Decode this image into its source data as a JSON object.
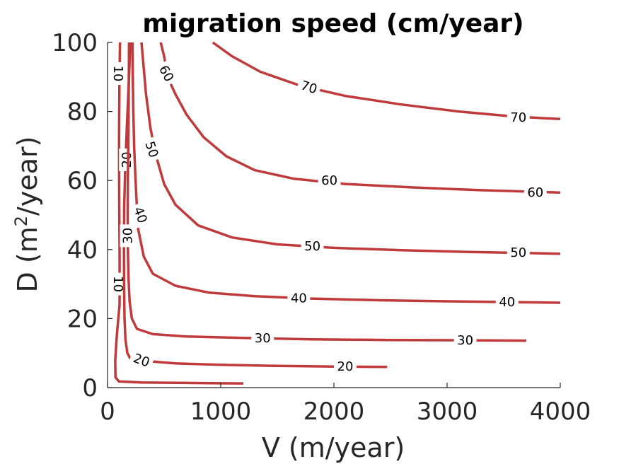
{
  "chart_data": {
    "type": "contour",
    "title": "migration speed (cm/year)",
    "xlabel": "V (m/year)",
    "ylabel_main": "D (m",
    "ylabel_sup": "2",
    "ylabel_tail": "/year)",
    "xlim": [
      0,
      4000
    ],
    "ylim": [
      0,
      100
    ],
    "xticks": [
      0,
      1000,
      2000,
      3000,
      4000
    ],
    "xtick_labels": [
      "0",
      "1000",
      "2000",
      "3000",
      "4000"
    ],
    "yticks": [
      0,
      20,
      40,
      60,
      80,
      100
    ],
    "ytick_labels": [
      "0",
      "20",
      "40",
      "60",
      "80",
      "100"
    ],
    "line_color": "#c0393b",
    "contours": [
      {
        "level": 10,
        "points": [
          [
            110,
            100
          ],
          [
            105,
            88
          ],
          [
            102,
            72
          ],
          [
            103,
            55
          ],
          [
            106,
            40
          ],
          [
            107,
            30
          ],
          [
            106,
            24
          ],
          [
            82,
            15
          ],
          [
            68,
            8
          ],
          [
            70,
            3
          ],
          [
            100,
            1.8
          ],
          [
            300,
            1.5
          ],
          [
            600,
            1.4
          ],
          [
            900,
            1.3
          ],
          [
            1200,
            1.2
          ]
        ],
        "labels": [
          {
            "text": "10",
            "at": [
              95,
              91
            ],
            "angle": 90
          },
          {
            "text": "10",
            "at": [
              95,
              30
            ],
            "angle": 90
          }
        ]
      },
      {
        "level": 20,
        "points": [
          [
            202,
            100
          ],
          [
            190,
            90
          ],
          [
            170,
            75
          ],
          [
            155,
            62
          ],
          [
            147,
            52
          ],
          [
            145,
            40
          ],
          [
            147,
            28
          ],
          [
            150,
            20
          ],
          [
            158,
            14
          ],
          [
            175,
            10
          ],
          [
            200,
            8.5
          ],
          [
            300,
            7.8
          ],
          [
            600,
            7.0
          ],
          [
            1000,
            6.6
          ],
          [
            1500,
            6.3
          ],
          [
            2000,
            6.1
          ],
          [
            2470,
            6.0
          ]
        ],
        "labels": [
          {
            "text": "20",
            "at": [
              170,
              66
            ],
            "angle": -90
          },
          {
            "text": "20",
            "at": [
              300,
              7.9
            ],
            "angle": 20
          },
          {
            "text": "20",
            "at": [
              2100,
              6.1
            ],
            "angle": 0
          }
        ]
      },
      {
        "level": 30,
        "points": [
          [
            190,
            100
          ],
          [
            188,
            90
          ],
          [
            185,
            75
          ],
          [
            180,
            62
          ],
          [
            178,
            50
          ],
          [
            180,
            40
          ],
          [
            185,
            32
          ],
          [
            195,
            25
          ],
          [
            215,
            20
          ],
          [
            260,
            17
          ],
          [
            400,
            15.5
          ],
          [
            700,
            14.8
          ],
          [
            1200,
            14.4
          ],
          [
            1800,
            14.0
          ],
          [
            2500,
            13.8
          ],
          [
            3200,
            13.7
          ],
          [
            3700,
            13.6
          ]
        ],
        "labels": [
          {
            "text": "30",
            "at": [
              178,
              44
            ],
            "angle": -90
          },
          {
            "text": "30",
            "at": [
              1370,
              14.3
            ],
            "angle": 0
          },
          {
            "text": "30",
            "at": [
              3160,
              13.7
            ],
            "angle": 0
          }
        ]
      },
      {
        "level": 40,
        "points": [
          [
            220,
            100
          ],
          [
            223,
            90
          ],
          [
            228,
            80
          ],
          [
            235,
            70
          ],
          [
            245,
            62
          ],
          [
            255,
            55
          ],
          [
            270,
            46
          ],
          [
            320,
            38
          ],
          [
            400,
            33
          ],
          [
            600,
            29.5
          ],
          [
            900,
            27.5
          ],
          [
            1300,
            26.5
          ],
          [
            1800,
            25.8
          ],
          [
            2400,
            25.3
          ],
          [
            3000,
            25.0
          ],
          [
            3500,
            24.8
          ],
          [
            4000,
            24.6
          ]
        ],
        "labels": [
          {
            "text": "40",
            "at": [
              290,
              50
            ],
            "angle": 70
          },
          {
            "text": "40",
            "at": [
              1690,
              25.9
            ],
            "angle": 0
          },
          {
            "text": "40",
            "at": [
              3530,
              24.8
            ],
            "angle": 0
          }
        ]
      },
      {
        "level": 50,
        "points": [
          [
            300,
            100
          ],
          [
            340,
            85
          ],
          [
            380,
            75
          ],
          [
            430,
            67
          ],
          [
            500,
            59
          ],
          [
            600,
            53
          ],
          [
            800,
            47
          ],
          [
            1100,
            43.5
          ],
          [
            1500,
            41.5
          ],
          [
            2000,
            40.5
          ],
          [
            2600,
            39.8
          ],
          [
            3200,
            39.3
          ],
          [
            4000,
            38.8
          ]
        ],
        "labels": [
          {
            "text": "50",
            "at": [
              390,
              69
            ],
            "angle": 72
          },
          {
            "text": "50",
            "at": [
              1810,
              41
            ],
            "angle": 0
          },
          {
            "text": "50",
            "at": [
              3630,
              39.1
            ],
            "angle": 0
          }
        ]
      },
      {
        "level": 60,
        "points": [
          [
            470,
            100
          ],
          [
            500,
            96
          ],
          [
            530,
            90
          ],
          [
            600,
            85
          ],
          [
            700,
            79
          ],
          [
            850,
            72.5
          ],
          [
            1050,
            67
          ],
          [
            1300,
            63
          ],
          [
            1650,
            60.5
          ],
          [
            2100,
            59
          ],
          [
            2700,
            58
          ],
          [
            3300,
            57.2
          ],
          [
            4000,
            56.5
          ]
        ],
        "labels": [
          {
            "text": "60",
            "at": [
              520,
              91
            ],
            "angle": 62
          },
          {
            "text": "60",
            "at": [
              1960,
              60
            ],
            "angle": 0
          },
          {
            "text": "60",
            "at": [
              3780,
              56.6
            ],
            "angle": 0
          }
        ]
      },
      {
        "level": 70,
        "points": [
          [
            930,
            100
          ],
          [
            1100,
            96
          ],
          [
            1350,
            91.5
          ],
          [
            1700,
            87.5
          ],
          [
            2100,
            84.5
          ],
          [
            2600,
            82
          ],
          [
            3100,
            80
          ],
          [
            3600,
            78.5
          ],
          [
            4000,
            77.8
          ]
        ],
        "labels": [
          {
            "text": "70",
            "at": [
              1780,
              87
            ],
            "angle": 18
          },
          {
            "text": "70",
            "at": [
              3630,
              78.3
            ],
            "angle": 0
          }
        ]
      }
    ]
  }
}
